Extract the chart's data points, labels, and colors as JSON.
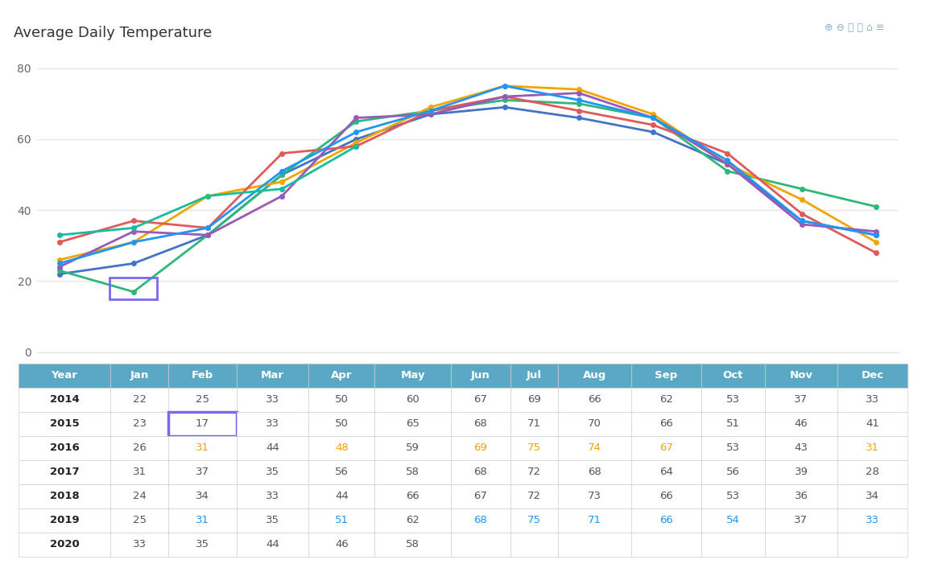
{
  "title": "Average Daily Temperature",
  "months": [
    "Jan",
    "Feb",
    "Mar",
    "Apr",
    "May",
    "Jun",
    "Jul",
    "Aug",
    "Sep",
    "Oct",
    "Nov",
    "Dec"
  ],
  "series": {
    "2014": {
      "color": "#4472c4",
      "data": [
        22,
        25,
        33,
        50,
        60,
        67,
        69,
        66,
        62,
        53,
        37,
        33
      ]
    },
    "2015": {
      "color": "#2db87a",
      "data": [
        23,
        17,
        33,
        50,
        65,
        68,
        71,
        70,
        66,
        51,
        46,
        41
      ]
    },
    "2016": {
      "color": "#f0a500",
      "data": [
        26,
        31,
        44,
        48,
        59,
        69,
        75,
        74,
        67,
        53,
        43,
        31
      ]
    },
    "2017": {
      "color": "#e05a5a",
      "data": [
        31,
        37,
        35,
        56,
        58,
        68,
        72,
        68,
        64,
        56,
        39,
        28
      ]
    },
    "2018": {
      "color": "#9b59b6",
      "data": [
        24,
        34,
        33,
        44,
        66,
        67,
        72,
        73,
        66,
        53,
        36,
        34
      ]
    },
    "2019": {
      "color": "#2196f3",
      "data": [
        25,
        31,
        35,
        51,
        62,
        68,
        75,
        71,
        66,
        54,
        37,
        33
      ]
    },
    "2020": {
      "color": "#1abc9c",
      "data": [
        33,
        35,
        44,
        46,
        58,
        null,
        null,
        null,
        null,
        null,
        null,
        null
      ]
    }
  },
  "years_order": [
    "2014",
    "2015",
    "2016",
    "2017",
    "2018",
    "2019",
    "2020"
  ],
  "table_header_bg": "#5ba8c4",
  "table_header_text": "#ffffff",
  "table_border_color": "#d0d0d0",
  "highlight_color": "#7b68ee",
  "chart_bg": "#ffffff",
  "grid_color": "#e5e5e5",
  "ylim": [
    0,
    80
  ],
  "yticks": [
    0,
    20,
    40,
    60,
    80
  ],
  "colored_months_2016": [
    "Feb",
    "Apr",
    "Jun",
    "Jul",
    "Aug",
    "Sep",
    "Dec"
  ],
  "colored_months_2019": [
    "Feb",
    "Apr",
    "Jun",
    "Jul",
    "Aug",
    "Sep",
    "Oct",
    "Dec"
  ]
}
